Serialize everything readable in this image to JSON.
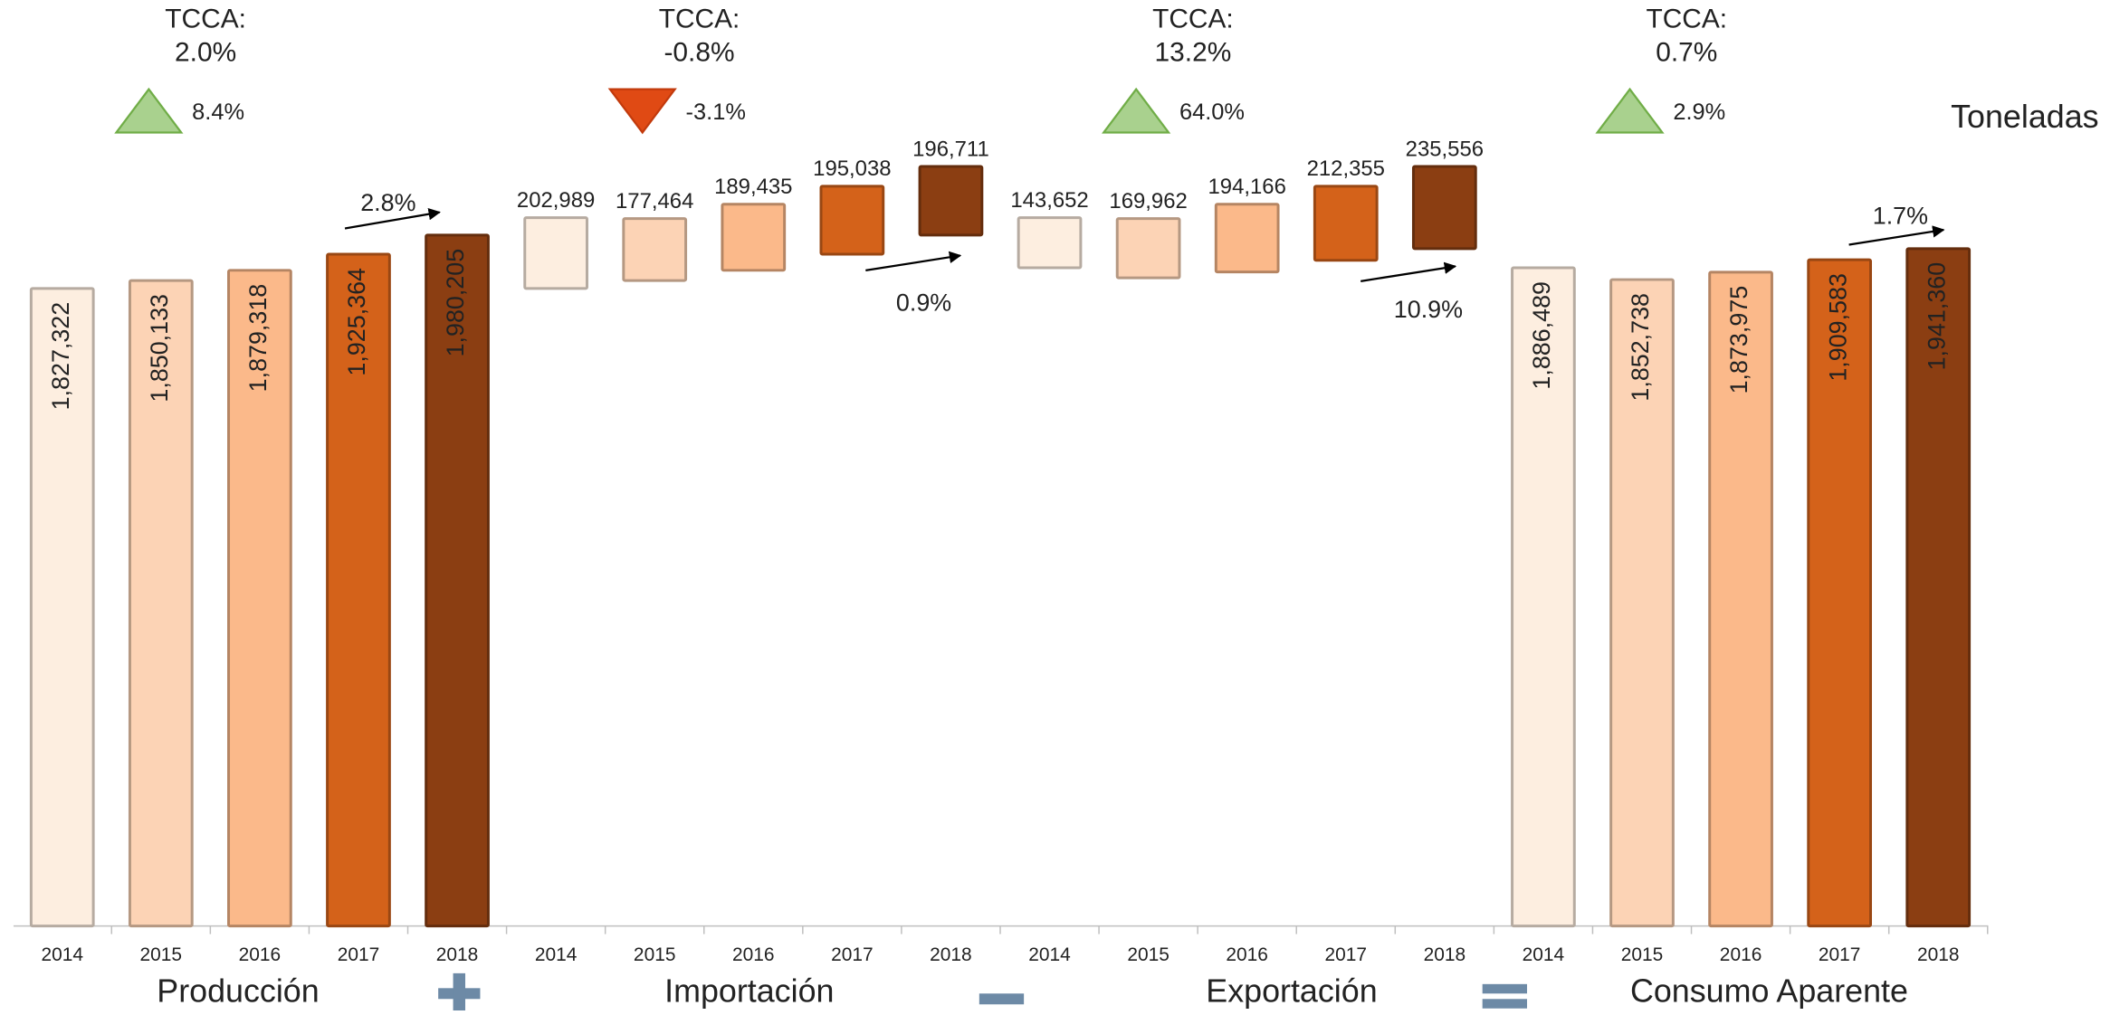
{
  "chart_data": {
    "type": "waterfall",
    "unit_label": "Toneladas",
    "categories": [
      "2014",
      "2015",
      "2016",
      "2017",
      "2018"
    ],
    "year_colors": [
      "#fdeee0",
      "#fcd3b5",
      "#fbb98a",
      "#d4621a",
      "#8b3e12"
    ],
    "ylim": [
      0,
      2100000
    ],
    "series": [
      {
        "name": "Producción",
        "stack": "base",
        "values": [
          1827322,
          1850133,
          1879318,
          1925364,
          1980205
        ],
        "value_labels": [
          "1,827,322",
          "1,850,133",
          "1,879,318",
          "1,925,364",
          "1,980,205"
        ],
        "tcca_heading": "TCCA:",
        "tcca": "2.0%",
        "change": "8.4%",
        "change_direction": "up",
        "growth": "2.8%"
      },
      {
        "name": "Importación",
        "stack": "add",
        "values": [
          202989,
          177464,
          189435,
          195038,
          196711
        ],
        "value_labels": [
          "202,989",
          "177,464",
          "189,435",
          "195,038",
          "196,711"
        ],
        "tcca_heading": "TCCA:",
        "tcca": "-0.8%",
        "change": "-3.1%",
        "change_direction": "down",
        "growth": "0.9%"
      },
      {
        "name": "Exportación",
        "stack": "subtract",
        "values": [
          143652,
          169962,
          194166,
          212355,
          235556
        ],
        "value_labels": [
          "143,652",
          "169,962",
          "194,166",
          "212,355",
          "235,556"
        ],
        "tcca_heading": "TCCA:",
        "tcca": "13.2%",
        "change": "64.0%",
        "change_direction": "up",
        "growth": "10.9%"
      },
      {
        "name": "Consumo Aparente",
        "stack": "base",
        "values": [
          1886489,
          1852738,
          1873975,
          1909583,
          1941360
        ],
        "value_labels": [
          "1,886,489",
          "1,852,738",
          "1,873,975",
          "1,909,583",
          "1,941,360"
        ],
        "tcca_heading": "TCCA:",
        "tcca": "0.7%",
        "change": "2.9%",
        "change_direction": "up",
        "growth": "1.7%"
      }
    ]
  }
}
